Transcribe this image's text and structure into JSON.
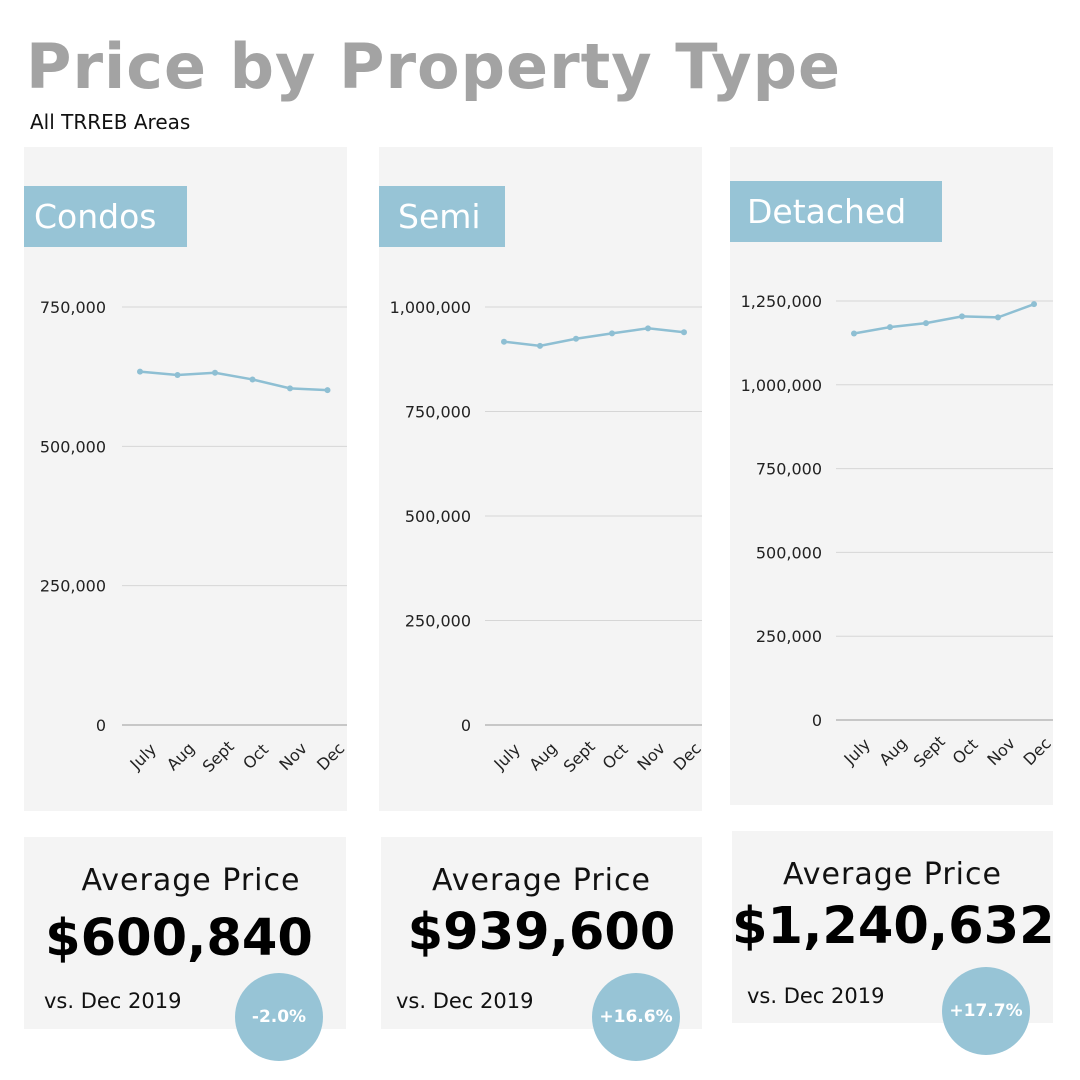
{
  "header": {
    "title": "Price by Property Type",
    "subtitle": "All TRREB Areas"
  },
  "colors": {
    "accent": "#97c4d6",
    "panel_bg": "#f4f4f4",
    "title_gray": "#a3a3a3",
    "grid": "#d6d6d6",
    "line": "#8ebfd3"
  },
  "chart_data": [
    {
      "type": "line",
      "title": "Condos",
      "categories": [
        "July",
        "Aug",
        "Sept",
        "Oct",
        "Nov",
        "Dec"
      ],
      "values": [
        634000,
        628000,
        632000,
        620000,
        604000,
        600840
      ],
      "y_ticks": [
        0,
        250000,
        500000,
        750000
      ],
      "y_tick_labels": [
        "0",
        "250,000",
        "500,000",
        "750,000"
      ],
      "ylim": [
        0,
        750000
      ],
      "grid": true
    },
    {
      "type": "line",
      "title": "Semi",
      "categories": [
        "July",
        "Aug",
        "Sept",
        "Oct",
        "Nov",
        "Dec"
      ],
      "values": [
        917000,
        907000,
        924000,
        937000,
        949000,
        939600
      ],
      "y_ticks": [
        0,
        250000,
        500000,
        750000,
        1000000
      ],
      "y_tick_labels": [
        "0",
        "250,000",
        "500,000",
        "750,000",
        "1,000,000"
      ],
      "ylim": [
        0,
        1000000
      ],
      "grid": true
    },
    {
      "type": "line",
      "title": "Detached",
      "categories": [
        "July",
        "Aug",
        "Sept",
        "Oct",
        "Nov",
        "Dec"
      ],
      "values": [
        1153000,
        1172000,
        1184000,
        1204000,
        1201000,
        1240632
      ],
      "y_ticks": [
        0,
        250000,
        500000,
        750000,
        1000000,
        1250000
      ],
      "y_tick_labels": [
        "0",
        "250,000",
        "500,000",
        "750,000",
        "1,000,000",
        "1,250,000"
      ],
      "ylim": [
        0,
        1250000
      ],
      "grid": true
    }
  ],
  "stats": [
    {
      "label": "Average Price",
      "value": "$600,840",
      "vs": "vs. Dec 2019",
      "change": "-2.0%"
    },
    {
      "label": "Average Price",
      "value": "$939,600",
      "vs": "vs. Dec 2019",
      "change": "+16.6%"
    },
    {
      "label": "Average Price",
      "value": "$1,240,632",
      "vs": "vs. Dec 2019",
      "change": "+17.7%"
    }
  ]
}
